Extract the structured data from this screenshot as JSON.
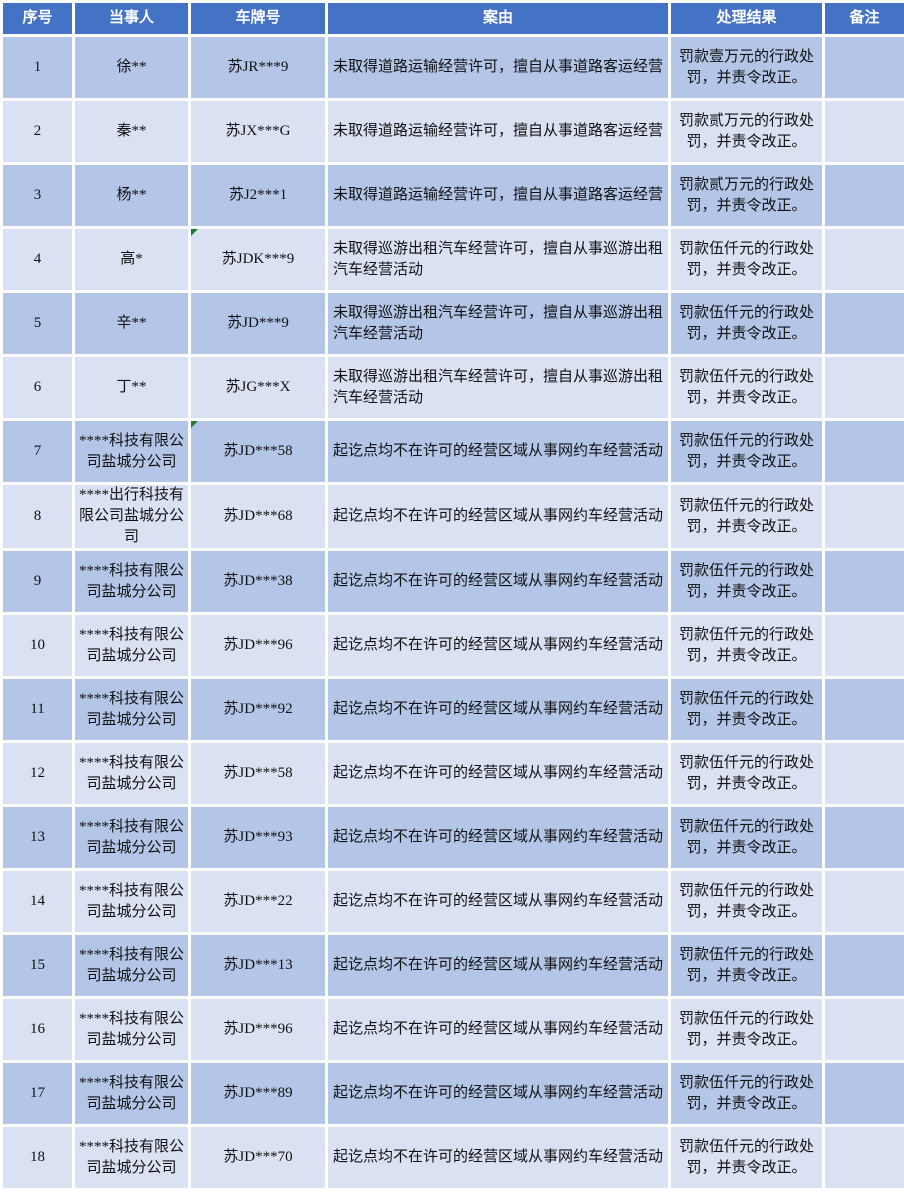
{
  "colors": {
    "header_bg": "#4472c4",
    "header_text": "#ffffff",
    "row_odd_bg": "#b4c6e7",
    "row_even_bg": "#d9e1f2",
    "grid_border": "#ffffff",
    "cell_text": "#111111",
    "flag_green": "#1e7b2f"
  },
  "table": {
    "columns": [
      {
        "key": "index",
        "label": "序号"
      },
      {
        "key": "party",
        "label": "当事人"
      },
      {
        "key": "plate",
        "label": "车牌号"
      },
      {
        "key": "cause",
        "label": "案由"
      },
      {
        "key": "result",
        "label": "处理结果"
      },
      {
        "key": "remark",
        "label": "备注"
      }
    ],
    "rows": [
      {
        "index": "1",
        "party": "徐**",
        "plate": "苏JR***9",
        "plate_flag": false,
        "cause": "未取得道路运输经营许可，擅自从事道路客运经营",
        "result": "罚款壹万元的行政处罚，并责令改正。",
        "remark": ""
      },
      {
        "index": "2",
        "party": "秦**",
        "plate": "苏JX***G",
        "plate_flag": false,
        "cause": "未取得道路运输经营许可，擅自从事道路客运经营",
        "result": "罚款贰万元的行政处罚，并责令改正。",
        "remark": ""
      },
      {
        "index": "3",
        "party": "杨**",
        "plate": "苏J2***1",
        "plate_flag": false,
        "cause": "未取得道路运输经营许可，擅自从事道路客运经营",
        "result": "罚款贰万元的行政处罚，并责令改正。",
        "remark": ""
      },
      {
        "index": "4",
        "party": "高*",
        "plate": "苏JDK***9",
        "plate_flag": true,
        "cause": "未取得巡游出租汽车经营许可，擅自从事巡游出租汽车经营活动",
        "result": "罚款伍仟元的行政处罚，并责令改正。",
        "remark": ""
      },
      {
        "index": "5",
        "party": "辛**",
        "plate": "苏JD***9",
        "plate_flag": false,
        "cause": "未取得巡游出租汽车经营许可，擅自从事巡游出租汽车经营活动",
        "result": "罚款伍仟元的行政处罚，并责令改正。",
        "remark": ""
      },
      {
        "index": "6",
        "party": "丁**",
        "plate": "苏JG***X",
        "plate_flag": false,
        "cause": "未取得巡游出租汽车经营许可，擅自从事巡游出租汽车经营活动",
        "result": "罚款伍仟元的行政处罚，并责令改正。",
        "remark": ""
      },
      {
        "index": "7",
        "party": "****科技有限公司盐城分公司",
        "plate": "苏JD***58",
        "plate_flag": true,
        "cause": "起讫点均不在许可的经营区域从事网约车经营活动",
        "result": "罚款伍仟元的行政处罚，并责令改正。",
        "remark": ""
      },
      {
        "index": "8",
        "party": "****出行科技有限公司盐城分公司",
        "plate": "苏JD***68",
        "plate_flag": false,
        "cause": "起讫点均不在许可的经营区域从事网约车经营活动",
        "result": "罚款伍仟元的行政处罚，并责令改正。",
        "remark": ""
      },
      {
        "index": "9",
        "party": "****科技有限公司盐城分公司",
        "plate": "苏JD***38",
        "plate_flag": false,
        "cause": "起讫点均不在许可的经营区域从事网约车经营活动",
        "result": "罚款伍仟元的行政处罚，并责令改正。",
        "remark": ""
      },
      {
        "index": "10",
        "party": "****科技有限公司盐城分公司",
        "plate": "苏JD***96",
        "plate_flag": false,
        "cause": "起讫点均不在许可的经营区域从事网约车经营活动",
        "result": "罚款伍仟元的行政处罚，并责令改正。",
        "remark": ""
      },
      {
        "index": "11",
        "party": "****科技有限公司盐城分公司",
        "plate": "苏JD***92",
        "plate_flag": false,
        "cause": "起讫点均不在许可的经营区域从事网约车经营活动",
        "result": "罚款伍仟元的行政处罚，并责令改正。",
        "remark": ""
      },
      {
        "index": "12",
        "party": "****科技有限公司盐城分公司",
        "plate": "苏JD***58",
        "plate_flag": false,
        "cause": "起讫点均不在许可的经营区域从事网约车经营活动",
        "result": "罚款伍仟元的行政处罚，并责令改正。",
        "remark": ""
      },
      {
        "index": "13",
        "party": "****科技有限公司盐城分公司",
        "plate": "苏JD***93",
        "plate_flag": false,
        "cause": "起讫点均不在许可的经营区域从事网约车经营活动",
        "result": "罚款伍仟元的行政处罚，并责令改正。",
        "remark": ""
      },
      {
        "index": "14",
        "party": "****科技有限公司盐城分公司",
        "plate": "苏JD***22",
        "plate_flag": false,
        "cause": "起讫点均不在许可的经营区域从事网约车经营活动",
        "result": "罚款伍仟元的行政处罚，并责令改正。",
        "remark": ""
      },
      {
        "index": "15",
        "party": "****科技有限公司盐城分公司",
        "plate": "苏JD***13",
        "plate_flag": false,
        "cause": "起讫点均不在许可的经营区域从事网约车经营活动",
        "result": "罚款伍仟元的行政处罚，并责令改正。",
        "remark": ""
      },
      {
        "index": "16",
        "party": "****科技有限公司盐城分公司",
        "plate": "苏JD***96",
        "plate_flag": false,
        "cause": "起讫点均不在许可的经营区域从事网约车经营活动",
        "result": "罚款伍仟元的行政处罚，并责令改正。",
        "remark": ""
      },
      {
        "index": "17",
        "party": "****科技有限公司盐城分公司",
        "plate": "苏JD***89",
        "plate_flag": false,
        "cause": "起讫点均不在许可的经营区域从事网约车经营活动",
        "result": "罚款伍仟元的行政处罚，并责令改正。",
        "remark": ""
      },
      {
        "index": "18",
        "party": "****科技有限公司盐城分公司",
        "plate": "苏JD***70",
        "plate_flag": false,
        "cause": "起讫点均不在许可的经营区域从事网约车经营活动",
        "result": "罚款伍仟元的行政处罚，并责令改正。",
        "remark": ""
      }
    ]
  }
}
